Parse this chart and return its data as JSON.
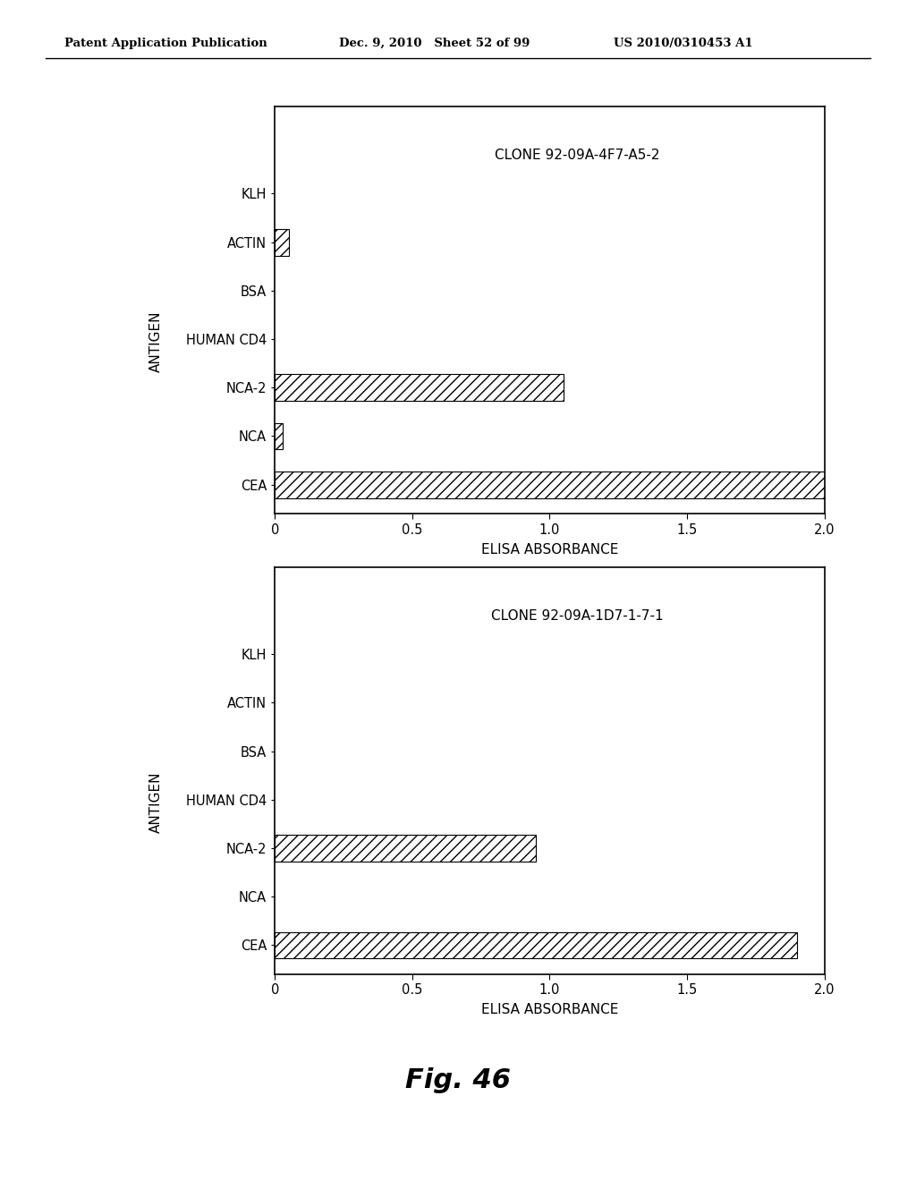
{
  "charts": [
    {
      "title": "CLONE 92-09A-4F7-A5-2",
      "categories": [
        "CEA",
        "NCA",
        "NCA-2",
        "HUMAN CD4",
        "BSA",
        "ACTIN",
        "KLH"
      ],
      "values": [
        2.0,
        0.03,
        1.05,
        0.0,
        0.0,
        0.05,
        0.0
      ],
      "xlim": [
        0,
        2.0
      ],
      "xticks": [
        0,
        0.5,
        1.0,
        1.5,
        2.0
      ],
      "xtick_labels": [
        "0",
        "0.5",
        "1.0",
        "1.5",
        "2.0"
      ],
      "xlabel": "ELISA ABSORBANCE",
      "ylabel": "ANTIGEN"
    },
    {
      "title": "CLONE 92-09A-1D7-1-7-1",
      "categories": [
        "CEA",
        "NCA",
        "NCA-2",
        "HUMAN CD4",
        "BSA",
        "ACTIN",
        "KLH"
      ],
      "values": [
        1.9,
        0.0,
        0.95,
        0.0,
        0.0,
        0.0,
        0.0
      ],
      "xlim": [
        0,
        2.0
      ],
      "xticks": [
        0,
        0.5,
        1.0,
        1.5,
        2.0
      ],
      "xtick_labels": [
        "0",
        "0.5",
        "1.0",
        "1.5",
        "2.0"
      ],
      "xlabel": "ELISA ABSORBANCE",
      "ylabel": "ANTIGEN"
    }
  ],
  "fig_label": "Fig. 46",
  "header_left": "Patent Application Publication",
  "header_mid": "Dec. 9, 2010   Sheet 52 of 99",
  "header_right": "US 2010/0310453 A1",
  "bg_color": "#ffffff",
  "hatch": "///",
  "bar_height": 0.55,
  "title_row_extra": 1.5
}
